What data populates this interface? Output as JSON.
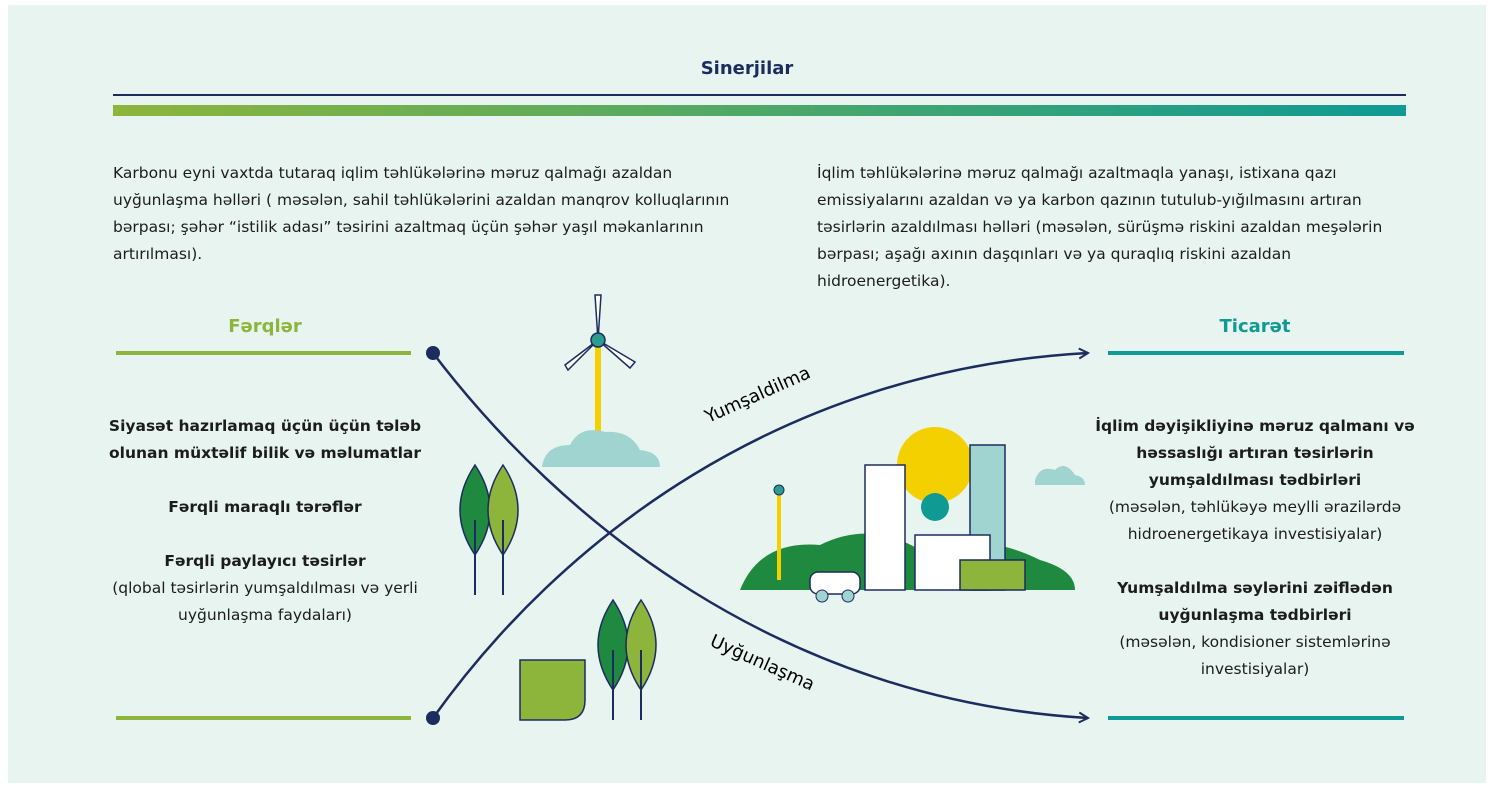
{
  "title": "Sinerjilar",
  "synergies": {
    "left": "Karbonu eyni vaxtda tutaraq iqlim təhlükələrinə məruz qalmağı azaldan uyğunlaşma həlləri ( məsələn, sahil təhlükələrini azaldan manqrov kolluqlarının bərpası; şəhər “istilik adası” təsirini azaltmaq üçün şəhər yaşıl məkanlarının artırılması).",
    "right": "İqlim təhlükələrinə məruz qalmağı azaltmaqla yanaşı, istixana qazı emissiyalarını azaldan və ya karbon qazının tutulub-yığılmasını artıran təsirlərin azaldılması həlləri (məsələn, sürüşmə riskini azaldan meşələrin bərpası; aşağı axının daşqınları və ya quraqlıq riskini azaldan hidroenergetika)."
  },
  "differences": {
    "title": "Fərqlər",
    "items": [
      {
        "heading": "Siyasət hazırlamaq üçün üçün tələb olunan müxtəlif bilik və məlumatlar"
      },
      {
        "heading": "Fərqli maraqlı tərəflər"
      },
      {
        "heading": "Fərqli paylayıcı təsirlər",
        "note": "(qlobal təsirlərin yumşaldılması və yerli uyğunlaşma faydaları)"
      }
    ]
  },
  "tradeoffs": {
    "title": "Ticarət",
    "items": [
      {
        "heading": "İqlim dəyişikliyinə məruz qalmanı və həssaslığı artıran təsirlərin yumşaldılması tədbirləri",
        "note": "(məsələn, təhlükəyə meylli ərazilərdə hidroenergetikaya investisiyalar)"
      },
      {
        "heading": "Yumşaldılma səylərini zəiflədən uyğunlaşma tədbirləri",
        "note": "(məsələn, kondisioner sistemlərinə investisiyalar)"
      }
    ]
  },
  "curves": {
    "mitigation": "Yumşaldilma",
    "adaptation": "Uyğunlaşma"
  }
}
